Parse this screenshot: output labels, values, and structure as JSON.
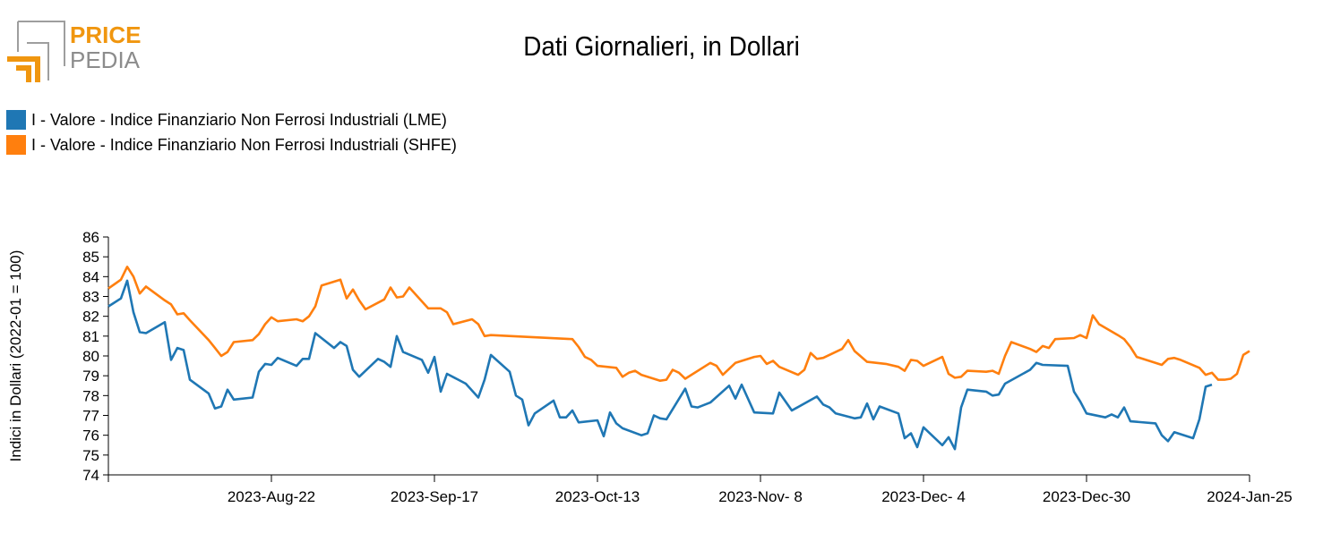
{
  "logo": {
    "line1": "PRICE",
    "line2": "PEDIA"
  },
  "chart_data": {
    "type": "line",
    "title": "Dati Giornalieri, in Dollari",
    "xlabel": "",
    "ylabel": "Indici in Dollari (2022-01 = 100)",
    "ylim": [
      74,
      86
    ],
    "yticks": [
      74,
      75,
      76,
      77,
      78,
      79,
      80,
      81,
      82,
      83,
      84,
      85,
      86
    ],
    "xlim": [
      "2023-07-27",
      "2024-01-25"
    ],
    "xticks": [
      "2023-Aug-22",
      "2023-Sep-17",
      "2023-Oct-13",
      "2023-Nov- 8",
      "2023-Dec- 4",
      "2023-Dec-30",
      "2024-Jan-25"
    ],
    "xtick_dates": [
      "2023-08-22",
      "2023-09-17",
      "2023-10-13",
      "2023-11-08",
      "2023-12-04",
      "2023-12-30",
      "2024-01-25"
    ],
    "grid": false,
    "legend_position": "top-left",
    "series": [
      {
        "name": "I - Valore - Indice Finanziario Non Ferrosi Industriali (LME)",
        "color": "#1f77b4",
        "points": [
          [
            "2023-07-27",
            82.5
          ],
          [
            "2023-07-29",
            82.9
          ],
          [
            "2023-07-30",
            83.8
          ],
          [
            "2023-07-31",
            82.2
          ],
          [
            "2023-08-01",
            81.2
          ],
          [
            "2023-08-02",
            81.15
          ],
          [
            "2023-08-05",
            81.7
          ],
          [
            "2023-08-06",
            79.8
          ],
          [
            "2023-08-07",
            80.4
          ],
          [
            "2023-08-08",
            80.3
          ],
          [
            "2023-08-09",
            78.8
          ],
          [
            "2023-08-12",
            78.1
          ],
          [
            "2023-08-13",
            77.35
          ],
          [
            "2023-08-14",
            77.45
          ],
          [
            "2023-08-15",
            78.3
          ],
          [
            "2023-08-16",
            77.8
          ],
          [
            "2023-08-19",
            77.9
          ],
          [
            "2023-08-20",
            79.2
          ],
          [
            "2023-08-21",
            79.6
          ],
          [
            "2023-08-22",
            79.55
          ],
          [
            "2023-08-23",
            79.9
          ],
          [
            "2023-08-26",
            79.5
          ],
          [
            "2023-08-27",
            79.85
          ],
          [
            "2023-08-28",
            79.85
          ],
          [
            "2023-08-29",
            81.15
          ],
          [
            "2023-09-01",
            80.4
          ],
          [
            "2023-09-02",
            80.7
          ],
          [
            "2023-09-03",
            80.5
          ],
          [
            "2023-09-04",
            79.3
          ],
          [
            "2023-09-05",
            78.95
          ],
          [
            "2023-09-08",
            79.85
          ],
          [
            "2023-09-09",
            79.7
          ],
          [
            "2023-09-10",
            79.45
          ],
          [
            "2023-09-11",
            81.0
          ],
          [
            "2023-09-12",
            80.2
          ],
          [
            "2023-09-15",
            79.8
          ],
          [
            "2023-09-16",
            79.15
          ],
          [
            "2023-09-17",
            79.95
          ],
          [
            "2023-09-18",
            78.2
          ],
          [
            "2023-09-19",
            79.1
          ],
          [
            "2023-09-22",
            78.6
          ],
          [
            "2023-09-24",
            77.9
          ],
          [
            "2023-09-25",
            78.8
          ],
          [
            "2023-09-26",
            80.05
          ],
          [
            "2023-09-29",
            79.2
          ],
          [
            "2023-09-30",
            78.0
          ],
          [
            "2023-10-01",
            77.8
          ],
          [
            "2023-10-02",
            76.5
          ],
          [
            "2023-10-03",
            77.1
          ],
          [
            "2023-10-06",
            77.75
          ],
          [
            "2023-10-07",
            76.9
          ],
          [
            "2023-10-08",
            76.9
          ],
          [
            "2023-10-09",
            77.25
          ],
          [
            "2023-10-10",
            76.65
          ],
          [
            "2023-10-13",
            76.75
          ],
          [
            "2023-10-14",
            75.95
          ],
          [
            "2023-10-15",
            77.15
          ],
          [
            "2023-10-16",
            76.6
          ],
          [
            "2023-10-17",
            76.35
          ],
          [
            "2023-10-20",
            76.0
          ],
          [
            "2023-10-21",
            76.1
          ],
          [
            "2023-10-22",
            77.0
          ],
          [
            "2023-10-23",
            76.85
          ],
          [
            "2023-10-24",
            76.8
          ],
          [
            "2023-10-27",
            78.35
          ],
          [
            "2023-10-28",
            77.45
          ],
          [
            "2023-10-29",
            77.4
          ],
          [
            "2023-10-31",
            77.65
          ],
          [
            "2023-11-03",
            78.5
          ],
          [
            "2023-11-04",
            77.85
          ],
          [
            "2023-11-05",
            78.55
          ],
          [
            "2023-11-07",
            77.15
          ],
          [
            "2023-11-10",
            77.1
          ],
          [
            "2023-11-11",
            78.15
          ],
          [
            "2023-11-13",
            77.25
          ],
          [
            "2023-11-17",
            77.95
          ],
          [
            "2023-11-18",
            77.55
          ],
          [
            "2023-11-19",
            77.4
          ],
          [
            "2023-11-20",
            77.1
          ],
          [
            "2023-11-23",
            76.85
          ],
          [
            "2023-11-24",
            76.9
          ],
          [
            "2023-11-25",
            77.6
          ],
          [
            "2023-11-26",
            76.8
          ],
          [
            "2023-11-27",
            77.45
          ],
          [
            "2023-11-30",
            77.1
          ],
          [
            "2023-12-01",
            75.85
          ],
          [
            "2023-12-02",
            76.1
          ],
          [
            "2023-12-03",
            75.4
          ],
          [
            "2023-12-04",
            76.4
          ],
          [
            "2023-12-07",
            75.5
          ],
          [
            "2023-12-08",
            75.9
          ],
          [
            "2023-12-09",
            75.3
          ],
          [
            "2023-12-10",
            77.4
          ],
          [
            "2023-12-11",
            78.3
          ],
          [
            "2023-12-14",
            78.2
          ],
          [
            "2023-12-15",
            78.0
          ],
          [
            "2023-12-16",
            78.05
          ],
          [
            "2023-12-17",
            78.6
          ],
          [
            "2023-12-21",
            79.3
          ],
          [
            "2023-12-22",
            79.65
          ],
          [
            "2023-12-23",
            79.55
          ],
          [
            "2023-12-27",
            79.5
          ],
          [
            "2023-12-28",
            78.2
          ],
          [
            "2023-12-29",
            77.7
          ],
          [
            "2023-12-30",
            77.1
          ],
          [
            "2024-01-02",
            76.9
          ],
          [
            "2024-01-03",
            77.05
          ],
          [
            "2024-01-04",
            76.9
          ],
          [
            "2024-01-05",
            77.4
          ],
          [
            "2024-01-06",
            76.7
          ],
          [
            "2024-01-10",
            76.6
          ],
          [
            "2024-01-11",
            76.0
          ],
          [
            "2024-01-12",
            75.7
          ],
          [
            "2024-01-13",
            76.15
          ],
          [
            "2024-01-16",
            75.85
          ],
          [
            "2024-01-17",
            76.8
          ],
          [
            "2024-01-18",
            78.45
          ],
          [
            "2024-01-19",
            78.55
          ]
        ]
      },
      {
        "name": "I - Valore - Indice Finanziario Non Ferrosi Industriali (SHFE)",
        "color": "#ff7f0e",
        "points": [
          [
            "2023-07-27",
            83.4
          ],
          [
            "2023-07-29",
            83.85
          ],
          [
            "2023-07-30",
            84.5
          ],
          [
            "2023-07-31",
            84.0
          ],
          [
            "2023-08-01",
            83.15
          ],
          [
            "2023-08-02",
            83.5
          ],
          [
            "2023-08-05",
            82.8
          ],
          [
            "2023-08-06",
            82.6
          ],
          [
            "2023-08-07",
            82.1
          ],
          [
            "2023-08-08",
            82.15
          ],
          [
            "2023-08-09",
            81.8
          ],
          [
            "2023-08-12",
            80.8
          ],
          [
            "2023-08-13",
            80.4
          ],
          [
            "2023-08-14",
            80.0
          ],
          [
            "2023-08-15",
            80.2
          ],
          [
            "2023-08-16",
            80.7
          ],
          [
            "2023-08-19",
            80.8
          ],
          [
            "2023-08-20",
            81.1
          ],
          [
            "2023-08-21",
            81.6
          ],
          [
            "2023-08-22",
            81.95
          ],
          [
            "2023-08-23",
            81.75
          ],
          [
            "2023-08-26",
            81.85
          ],
          [
            "2023-08-27",
            81.75
          ],
          [
            "2023-08-28",
            82.0
          ],
          [
            "2023-08-29",
            82.5
          ],
          [
            "2023-08-30",
            83.55
          ],
          [
            "2023-09-02",
            83.85
          ],
          [
            "2023-09-03",
            82.9
          ],
          [
            "2023-09-04",
            83.35
          ],
          [
            "2023-09-05",
            82.8
          ],
          [
            "2023-09-06",
            82.35
          ],
          [
            "2023-09-09",
            82.85
          ],
          [
            "2023-09-10",
            83.45
          ],
          [
            "2023-09-11",
            82.95
          ],
          [
            "2023-09-12",
            83.0
          ],
          [
            "2023-09-13",
            83.45
          ],
          [
            "2023-09-16",
            82.4
          ],
          [
            "2023-09-18",
            82.4
          ],
          [
            "2023-09-19",
            82.2
          ],
          [
            "2023-09-20",
            81.6
          ],
          [
            "2023-09-23",
            81.85
          ],
          [
            "2023-09-24",
            81.6
          ],
          [
            "2023-09-25",
            81.0
          ],
          [
            "2023-09-26",
            81.05
          ],
          [
            "2023-10-09",
            80.85
          ],
          [
            "2023-10-10",
            80.45
          ],
          [
            "2023-10-11",
            79.95
          ],
          [
            "2023-10-12",
            79.8
          ],
          [
            "2023-10-13",
            79.5
          ],
          [
            "2023-10-16",
            79.4
          ],
          [
            "2023-10-17",
            78.95
          ],
          [
            "2023-10-18",
            79.15
          ],
          [
            "2023-10-19",
            79.25
          ],
          [
            "2023-10-20",
            79.05
          ],
          [
            "2023-10-23",
            78.75
          ],
          [
            "2023-10-24",
            78.8
          ],
          [
            "2023-10-25",
            79.3
          ],
          [
            "2023-10-26",
            79.15
          ],
          [
            "2023-10-27",
            78.85
          ],
          [
            "2023-10-31",
            79.65
          ],
          [
            "2023-11-01",
            79.5
          ],
          [
            "2023-11-02",
            79.05
          ],
          [
            "2023-11-03",
            79.35
          ],
          [
            "2023-11-04",
            79.65
          ],
          [
            "2023-11-07",
            79.95
          ],
          [
            "2023-11-08",
            80.0
          ],
          [
            "2023-11-09",
            79.6
          ],
          [
            "2023-11-10",
            79.75
          ],
          [
            "2023-11-11",
            79.45
          ],
          [
            "2023-11-14",
            79.05
          ],
          [
            "2023-11-15",
            79.3
          ],
          [
            "2023-11-16",
            80.15
          ],
          [
            "2023-11-17",
            79.85
          ],
          [
            "2023-11-18",
            79.9
          ],
          [
            "2023-11-21",
            80.35
          ],
          [
            "2023-11-22",
            80.8
          ],
          [
            "2023-11-23",
            80.25
          ],
          [
            "2023-11-25",
            79.7
          ],
          [
            "2023-11-28",
            79.6
          ],
          [
            "2023-11-30",
            79.45
          ],
          [
            "2023-12-01",
            79.25
          ],
          [
            "2023-12-02",
            79.8
          ],
          [
            "2023-12-03",
            79.75
          ],
          [
            "2023-12-04",
            79.5
          ],
          [
            "2023-12-07",
            79.95
          ],
          [
            "2023-12-08",
            79.1
          ],
          [
            "2023-12-09",
            78.9
          ],
          [
            "2023-12-10",
            78.95
          ],
          [
            "2023-12-11",
            79.25
          ],
          [
            "2023-12-14",
            79.2
          ],
          [
            "2023-12-15",
            79.25
          ],
          [
            "2023-12-16",
            79.1
          ],
          [
            "2023-12-17",
            80.0
          ],
          [
            "2023-12-18",
            80.7
          ],
          [
            "2023-12-21",
            80.35
          ],
          [
            "2023-12-22",
            80.2
          ],
          [
            "2023-12-23",
            80.5
          ],
          [
            "2023-12-24",
            80.4
          ],
          [
            "2023-12-25",
            80.85
          ],
          [
            "2023-12-28",
            80.9
          ],
          [
            "2023-12-29",
            81.05
          ],
          [
            "2023-12-30",
            80.9
          ],
          [
            "2023-12-31",
            82.05
          ],
          [
            "2024-01-01",
            81.6
          ],
          [
            "2024-01-04",
            81.05
          ],
          [
            "2024-01-05",
            80.85
          ],
          [
            "2024-01-06",
            80.45
          ],
          [
            "2024-01-07",
            79.95
          ],
          [
            "2024-01-10",
            79.65
          ],
          [
            "2024-01-11",
            79.55
          ],
          [
            "2024-01-12",
            79.85
          ],
          [
            "2024-01-13",
            79.9
          ],
          [
            "2024-01-14",
            79.8
          ],
          [
            "2024-01-17",
            79.4
          ],
          [
            "2024-01-18",
            79.05
          ],
          [
            "2024-01-19",
            79.15
          ],
          [
            "2024-01-20",
            78.8
          ],
          [
            "2024-01-21",
            78.8
          ],
          [
            "2024-01-22",
            78.85
          ],
          [
            "2024-01-23",
            79.1
          ],
          [
            "2024-01-24",
            80.05
          ],
          [
            "2024-01-25",
            80.25
          ]
        ]
      }
    ]
  }
}
